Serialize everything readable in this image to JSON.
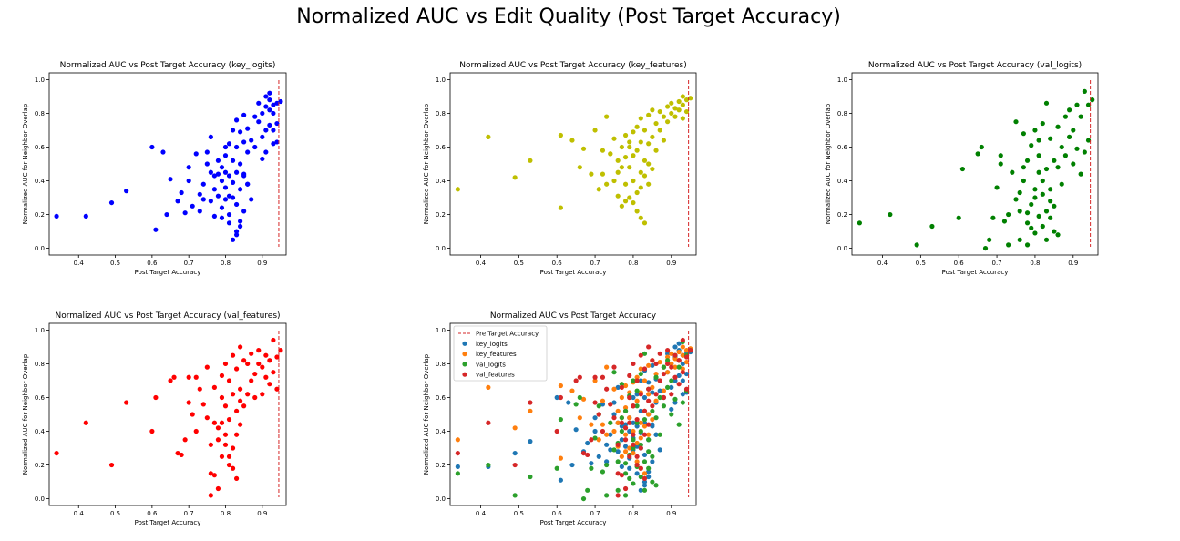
{
  "figure": {
    "suptitle": "Normalized AUC vs Edit Quality (Post Target Accuracy)"
  },
  "colors": {
    "blue": "#0000ff",
    "yellow": "#bfbf00",
    "green": "#008000",
    "red": "#ff0000",
    "tab_blue": "#1f77b4",
    "tab_orange": "#ff7f0e",
    "tab_green": "#2ca02c",
    "tab_red": "#d62728",
    "pre_line": "#d62728"
  },
  "chart_data": [
    {
      "type": "scatter",
      "title": "Normalized AUC vs Post Target Accuracy (key_logits)",
      "xlabel": "Post Target Accuracy",
      "ylabel": "Normalized AUC for Neighbor Overlap",
      "xlim": [
        0.32,
        0.965
      ],
      "ylim": [
        -0.04,
        1.04
      ],
      "xticks": [
        "0.4",
        "0.5",
        "0.6",
        "0.7",
        "0.8",
        "0.9"
      ],
      "yticks": [
        "0.0",
        "0.2",
        "0.4",
        "0.6",
        "0.8",
        "1.0"
      ],
      "reference_line_x": 0.945,
      "color": "blue",
      "points": {
        "x": [
          0.34,
          0.42,
          0.49,
          0.53,
          0.6,
          0.61,
          0.63,
          0.64,
          0.65,
          0.67,
          0.68,
          0.69,
          0.7,
          0.7,
          0.71,
          0.72,
          0.73,
          0.73,
          0.74,
          0.74,
          0.75,
          0.75,
          0.76,
          0.76,
          0.77,
          0.77,
          0.78,
          0.78,
          0.78,
          0.79,
          0.79,
          0.79,
          0.8,
          0.8,
          0.8,
          0.8,
          0.81,
          0.81,
          0.81,
          0.81,
          0.82,
          0.82,
          0.82,
          0.82,
          0.83,
          0.83,
          0.83,
          0.83,
          0.83,
          0.84,
          0.84,
          0.84,
          0.84,
          0.85,
          0.85,
          0.85,
          0.85,
          0.86,
          0.86,
          0.86,
          0.87,
          0.87,
          0.88,
          0.88,
          0.89,
          0.89,
          0.9,
          0.9,
          0.9,
          0.91,
          0.91,
          0.91,
          0.92,
          0.92,
          0.92,
          0.93,
          0.93,
          0.93,
          0.93,
          0.94,
          0.94,
          0.94,
          0.95,
          0.92,
          0.91,
          0.81,
          0.83,
          0.84,
          0.82,
          0.79,
          0.8,
          0.85,
          0.86,
          0.76,
          0.77
        ],
        "y": [
          0.19,
          0.19,
          0.27,
          0.34,
          0.6,
          0.11,
          0.57,
          0.2,
          0.41,
          0.28,
          0.33,
          0.21,
          0.4,
          0.48,
          0.25,
          0.56,
          0.32,
          0.22,
          0.38,
          0.29,
          0.5,
          0.57,
          0.45,
          0.28,
          0.19,
          0.35,
          0.44,
          0.31,
          0.52,
          0.4,
          0.24,
          0.48,
          0.36,
          0.29,
          0.45,
          0.55,
          0.43,
          0.2,
          0.62,
          0.31,
          0.05,
          0.39,
          0.52,
          0.7,
          0.08,
          0.26,
          0.45,
          0.6,
          0.76,
          0.16,
          0.35,
          0.5,
          0.69,
          0.22,
          0.43,
          0.63,
          0.79,
          0.38,
          0.57,
          0.71,
          0.29,
          0.64,
          0.78,
          0.6,
          0.75,
          0.86,
          0.66,
          0.8,
          0.53,
          0.84,
          0.7,
          0.57,
          0.88,
          0.73,
          0.92,
          0.8,
          0.62,
          0.85,
          0.7,
          0.86,
          0.74,
          0.63,
          0.87,
          0.82,
          0.9,
          0.15,
          0.1,
          0.13,
          0.3,
          0.18,
          0.6,
          0.44,
          0.38,
          0.66,
          0.43
        ]
      }
    },
    {
      "type": "scatter",
      "title": "Normalized AUC vs Post Target Accuracy (key_features)",
      "xlabel": "Post Target Accuracy",
      "ylabel": "Normalized AUC for Neighbor Overlap",
      "xlim": [
        0.32,
        0.965
      ],
      "ylim": [
        -0.04,
        1.04
      ],
      "xticks": [
        "0.4",
        "0.5",
        "0.6",
        "0.7",
        "0.8",
        "0.9"
      ],
      "yticks": [
        "0.0",
        "0.2",
        "0.4",
        "0.6",
        "0.8",
        "1.0"
      ],
      "reference_line_x": 0.945,
      "color": "yellow",
      "points": {
        "x": [
          0.34,
          0.42,
          0.49,
          0.53,
          0.61,
          0.61,
          0.64,
          0.66,
          0.67,
          0.69,
          0.7,
          0.71,
          0.72,
          0.72,
          0.73,
          0.73,
          0.74,
          0.75,
          0.75,
          0.76,
          0.76,
          0.77,
          0.77,
          0.78,
          0.78,
          0.78,
          0.79,
          0.79,
          0.79,
          0.8,
          0.8,
          0.8,
          0.81,
          0.81,
          0.81,
          0.82,
          0.82,
          0.82,
          0.82,
          0.83,
          0.83,
          0.83,
          0.84,
          0.84,
          0.84,
          0.85,
          0.85,
          0.85,
          0.86,
          0.86,
          0.87,
          0.87,
          0.88,
          0.88,
          0.89,
          0.89,
          0.9,
          0.9,
          0.91,
          0.91,
          0.92,
          0.92,
          0.93,
          0.93,
          0.93,
          0.94,
          0.94,
          0.95,
          0.8,
          0.81,
          0.82,
          0.78,
          0.76,
          0.83,
          0.84,
          0.79,
          0.74,
          0.77
        ],
        "y": [
          0.35,
          0.66,
          0.42,
          0.52,
          0.24,
          0.67,
          0.64,
          0.48,
          0.59,
          0.44,
          0.7,
          0.35,
          0.58,
          0.44,
          0.78,
          0.38,
          0.56,
          0.65,
          0.4,
          0.31,
          0.52,
          0.25,
          0.6,
          0.38,
          0.54,
          0.67,
          0.48,
          0.3,
          0.63,
          0.4,
          0.55,
          0.69,
          0.33,
          0.58,
          0.72,
          0.18,
          0.45,
          0.63,
          0.77,
          0.15,
          0.52,
          0.7,
          0.38,
          0.62,
          0.79,
          0.47,
          0.66,
          0.82,
          0.58,
          0.74,
          0.7,
          0.81,
          0.64,
          0.78,
          0.75,
          0.84,
          0.8,
          0.86,
          0.83,
          0.78,
          0.87,
          0.82,
          0.9,
          0.85,
          0.77,
          0.88,
          0.81,
          0.89,
          0.27,
          0.22,
          0.36,
          0.28,
          0.45,
          0.43,
          0.5,
          0.6,
          0.56,
          0.48
        ]
      }
    },
    {
      "type": "scatter",
      "title": "Normalized AUC vs Post Target Accuracy (val_logits)",
      "xlabel": "Post Target Accuracy",
      "ylabel": "Normalized AUC for Neighbor Overlap",
      "xlim": [
        0.32,
        0.965
      ],
      "ylim": [
        -0.04,
        1.04
      ],
      "xticks": [
        "0.4",
        "0.5",
        "0.6",
        "0.7",
        "0.8",
        "0.9"
      ],
      "yticks": [
        "0.0",
        "0.2",
        "0.4",
        "0.6",
        "0.8",
        "1.0"
      ],
      "reference_line_x": 0.945,
      "color": "green",
      "points": {
        "x": [
          0.34,
          0.42,
          0.49,
          0.53,
          0.6,
          0.61,
          0.65,
          0.66,
          0.67,
          0.68,
          0.69,
          0.7,
          0.71,
          0.71,
          0.72,
          0.73,
          0.73,
          0.74,
          0.75,
          0.75,
          0.76,
          0.76,
          0.77,
          0.77,
          0.78,
          0.78,
          0.78,
          0.79,
          0.79,
          0.8,
          0.8,
          0.8,
          0.81,
          0.81,
          0.81,
          0.82,
          0.82,
          0.82,
          0.83,
          0.83,
          0.83,
          0.84,
          0.84,
          0.84,
          0.85,
          0.85,
          0.86,
          0.86,
          0.87,
          0.87,
          0.88,
          0.88,
          0.89,
          0.89,
          0.9,
          0.9,
          0.91,
          0.91,
          0.92,
          0.92,
          0.93,
          0.93,
          0.94,
          0.94,
          0.95,
          0.79,
          0.8,
          0.81,
          0.82,
          0.83,
          0.84,
          0.78,
          0.76,
          0.85,
          0.86,
          0.77
        ],
        "y": [
          0.15,
          0.2,
          0.02,
          0.13,
          0.18,
          0.47,
          0.56,
          0.6,
          0.0,
          0.05,
          0.18,
          0.36,
          0.5,
          0.55,
          0.16,
          0.02,
          0.2,
          0.45,
          0.29,
          0.75,
          0.05,
          0.22,
          0.68,
          0.4,
          0.02,
          0.21,
          0.52,
          0.26,
          0.61,
          0.09,
          0.35,
          0.7,
          0.19,
          0.45,
          0.64,
          0.13,
          0.32,
          0.74,
          0.22,
          0.47,
          0.86,
          0.18,
          0.35,
          0.65,
          0.25,
          0.52,
          0.48,
          0.72,
          0.38,
          0.6,
          0.55,
          0.78,
          0.66,
          0.82,
          0.5,
          0.7,
          0.59,
          0.85,
          0.44,
          0.78,
          0.93,
          0.57,
          0.64,
          0.85,
          0.88,
          0.12,
          0.3,
          0.55,
          0.4,
          0.05,
          0.28,
          0.15,
          0.33,
          0.1,
          0.08,
          0.48
        ]
      }
    },
    {
      "type": "scatter",
      "title": "Normalized AUC vs Post Target Accuracy (val_features)",
      "xlabel": "Post Target Accuracy",
      "ylabel": "Normalized AUC for Neighbor Overlap",
      "xlim": [
        0.32,
        0.965
      ],
      "ylim": [
        -0.04,
        1.04
      ],
      "xticks": [
        "0.4",
        "0.5",
        "0.6",
        "0.7",
        "0.8",
        "0.9"
      ],
      "yticks": [
        "0.0",
        "0.2",
        "0.4",
        "0.6",
        "0.8",
        "1.0"
      ],
      "reference_line_x": 0.945,
      "color": "red",
      "points": {
        "x": [
          0.34,
          0.42,
          0.49,
          0.53,
          0.6,
          0.61,
          0.65,
          0.66,
          0.67,
          0.68,
          0.69,
          0.7,
          0.7,
          0.71,
          0.72,
          0.72,
          0.73,
          0.74,
          0.75,
          0.75,
          0.76,
          0.76,
          0.77,
          0.77,
          0.77,
          0.78,
          0.78,
          0.79,
          0.79,
          0.79,
          0.8,
          0.8,
          0.8,
          0.81,
          0.81,
          0.81,
          0.82,
          0.82,
          0.82,
          0.83,
          0.83,
          0.83,
          0.84,
          0.84,
          0.84,
          0.85,
          0.85,
          0.86,
          0.86,
          0.87,
          0.87,
          0.88,
          0.88,
          0.89,
          0.89,
          0.9,
          0.9,
          0.91,
          0.91,
          0.92,
          0.92,
          0.93,
          0.93,
          0.94,
          0.94,
          0.95,
          0.8,
          0.81,
          0.82,
          0.83,
          0.84,
          0.78,
          0.76,
          0.79
        ],
        "y": [
          0.27,
          0.45,
          0.2,
          0.57,
          0.4,
          0.6,
          0.7,
          0.72,
          0.27,
          0.26,
          0.35,
          0.57,
          0.72,
          0.5,
          0.4,
          0.72,
          0.65,
          0.56,
          0.78,
          0.48,
          0.02,
          0.32,
          0.14,
          0.45,
          0.66,
          0.06,
          0.42,
          0.6,
          0.25,
          0.73,
          0.38,
          0.55,
          0.8,
          0.2,
          0.47,
          0.7,
          0.3,
          0.62,
          0.85,
          0.12,
          0.52,
          0.77,
          0.44,
          0.65,
          0.9,
          0.55,
          0.82,
          0.62,
          0.8,
          0.7,
          0.86,
          0.74,
          0.6,
          0.8,
          0.88,
          0.62,
          0.78,
          0.72,
          0.85,
          0.68,
          0.82,
          0.94,
          0.75,
          0.84,
          0.65,
          0.88,
          0.32,
          0.25,
          0.18,
          0.38,
          0.58,
          0.35,
          0.15,
          0.45
        ]
      }
    },
    {
      "type": "scatter",
      "title": "Normalized AUC vs Post Target Accuracy",
      "xlabel": "Post Target Accuracy",
      "ylabel": "Normalized AUC for Neighbor Overlap",
      "xlim": [
        0.32,
        0.965
      ],
      "ylim": [
        -0.04,
        1.04
      ],
      "xticks": [
        "0.4",
        "0.5",
        "0.6",
        "0.7",
        "0.8",
        "0.9"
      ],
      "yticks": [
        "0.0",
        "0.2",
        "0.4",
        "0.6",
        "0.8",
        "1.0"
      ],
      "reference_line_x": 0.945,
      "legend_placement": "upper-left",
      "legend_line_label": "Pre Target Accuracy",
      "combined_series": [
        {
          "name": "key_logits",
          "color": "tab_blue",
          "source_index": 0
        },
        {
          "name": "key_features",
          "color": "tab_orange",
          "source_index": 1
        },
        {
          "name": "val_logits",
          "color": "tab_green",
          "source_index": 2
        },
        {
          "name": "val_features",
          "color": "tab_red",
          "source_index": 3
        }
      ]
    }
  ]
}
